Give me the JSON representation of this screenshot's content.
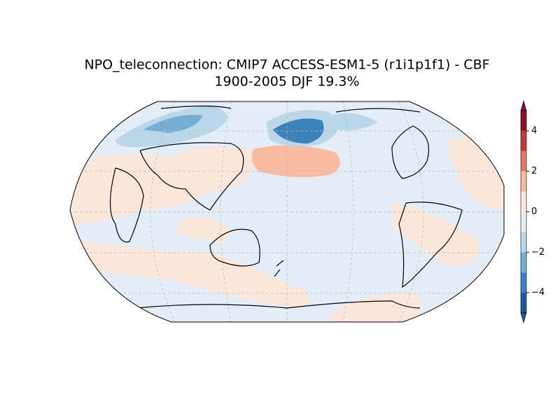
{
  "chart_data": {
    "type": "map",
    "title": "NPO_teleconnection: CMIP7 ACCESS-ESM1-5 (r1i1p1f1) - CBF",
    "subtitle": "1900-2005 DJF 19.3%",
    "colorbar": {
      "levels": [
        -5,
        -4,
        -3,
        -2,
        -1,
        0,
        1,
        2,
        3,
        4,
        5
      ],
      "colors": [
        "#1b5a98",
        "#3b82bb",
        "#76add3",
        "#bad6e9",
        "#e4edf5",
        "#fbe6dc",
        "#f7bba1",
        "#de7a64",
        "#c13b3c",
        "#8a1028"
      ],
      "extend": "both",
      "ylim": [
        -5,
        5
      ],
      "yticks": [
        {
          "value": -4,
          "label": "−4"
        },
        {
          "value": -2,
          "label": "−2"
        },
        0,
        2,
        4
      ]
    }
  }
}
